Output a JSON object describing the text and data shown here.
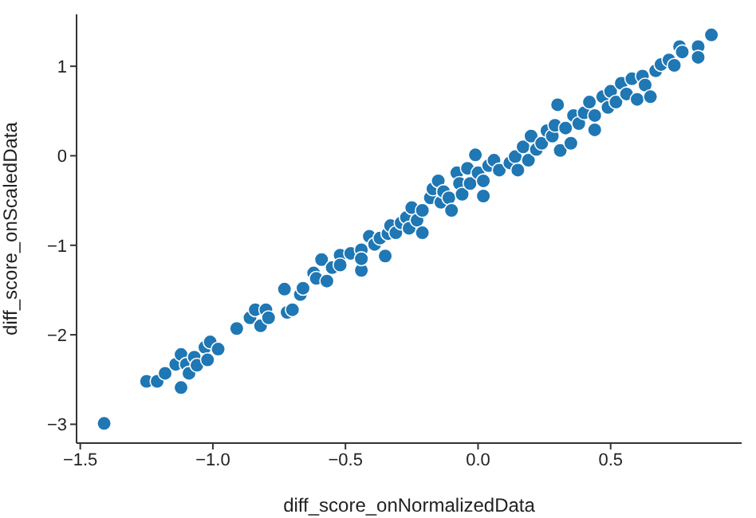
{
  "chart_data": {
    "type": "scatter",
    "xlabel": "diff_score_onNormalizedData",
    "ylabel": "diff_score_onScaledData",
    "marker": "circle",
    "grid": false,
    "legend": false,
    "xlim": [
      -1.514,
      0.994
    ],
    "ylim": [
      -3.21,
      1.58
    ],
    "xticks": [
      {
        "value": -1.5,
        "label": "−1.5"
      },
      {
        "value": -1.0,
        "label": "−1.0"
      },
      {
        "value": -0.5,
        "label": "−0.5"
      },
      {
        "value": 0.0,
        "label": "0.0"
      },
      {
        "value": 0.5,
        "label": "0.5"
      }
    ],
    "yticks": [
      {
        "value": -3,
        "label": "−3"
      },
      {
        "value": -2,
        "label": "−2"
      },
      {
        "value": -1,
        "label": "−1"
      },
      0,
      1
    ],
    "series": [
      {
        "color": "#1f77b4",
        "x": [
          -1.41,
          -1.25,
          -1.21,
          -1.18,
          -1.14,
          -1.12,
          -1.12,
          -1.1,
          -1.09,
          -1.07,
          -1.06,
          -1.03,
          -1.02,
          -1.01,
          -0.98,
          -0.91,
          -0.86,
          -0.84,
          -0.82,
          -0.8,
          -0.79,
          -0.73,
          -0.72,
          -0.7,
          -0.67,
          -0.66,
          -0.62,
          -0.61,
          -0.59,
          -0.57,
          -0.55,
          -0.52,
          -0.52,
          -0.48,
          -0.44,
          -0.44,
          -0.44,
          -0.41,
          -0.39,
          -0.37,
          -0.35,
          -0.34,
          -0.33,
          -0.31,
          -0.29,
          -0.27,
          -0.26,
          -0.25,
          -0.23,
          -0.21,
          -0.21,
          -0.18,
          -0.17,
          -0.15,
          -0.14,
          -0.13,
          -0.11,
          -0.1,
          -0.08,
          -0.07,
          -0.06,
          -0.04,
          -0.03,
          -0.01,
          0.0,
          0.02,
          0.02,
          0.04,
          0.06,
          0.08,
          0.12,
          0.14,
          0.15,
          0.17,
          0.19,
          0.2,
          0.22,
          0.24,
          0.26,
          0.28,
          0.29,
          0.3,
          0.31,
          0.33,
          0.35,
          0.36,
          0.38,
          0.4,
          0.42,
          0.44,
          0.44,
          0.47,
          0.49,
          0.5,
          0.52,
          0.54,
          0.56,
          0.58,
          0.6,
          0.62,
          0.63,
          0.65,
          0.67,
          0.69,
          0.72,
          0.74,
          0.76,
          0.77,
          0.83,
          0.83,
          0.88
        ],
        "values": [
          -2.99,
          -2.52,
          -2.52,
          -2.43,
          -2.33,
          -2.59,
          -2.22,
          -2.33,
          -2.43,
          -2.25,
          -2.34,
          -2.14,
          -2.28,
          -2.08,
          -2.16,
          -1.93,
          -1.81,
          -1.72,
          -1.9,
          -1.72,
          -1.81,
          -1.49,
          -1.75,
          -1.72,
          -1.55,
          -1.48,
          -1.31,
          -1.37,
          -1.16,
          -1.4,
          -1.25,
          -1.11,
          -1.22,
          -1.09,
          -1.05,
          -1.28,
          -1.15,
          -0.9,
          -0.99,
          -0.92,
          -1.12,
          -0.87,
          -0.78,
          -0.86,
          -0.75,
          -0.69,
          -0.81,
          -0.58,
          -0.72,
          -0.86,
          -0.61,
          -0.47,
          -0.37,
          -0.28,
          -0.52,
          -0.4,
          -0.47,
          -0.61,
          -0.19,
          -0.31,
          -0.43,
          -0.14,
          -0.31,
          0.01,
          -0.19,
          -0.28,
          -0.45,
          -0.11,
          -0.05,
          -0.16,
          -0.08,
          -0.01,
          -0.16,
          0.1,
          -0.05,
          0.22,
          0.07,
          0.14,
          0.28,
          0.22,
          0.34,
          0.57,
          0.06,
          0.31,
          0.14,
          0.45,
          0.36,
          0.48,
          0.6,
          0.29,
          0.45,
          0.66,
          0.54,
          0.72,
          0.6,
          0.81,
          0.69,
          0.86,
          0.63,
          0.89,
          0.79,
          0.66,
          0.95,
          1.02,
          1.07,
          1.01,
          1.22,
          1.16,
          1.22,
          1.1,
          1.35
        ]
      }
    ]
  }
}
